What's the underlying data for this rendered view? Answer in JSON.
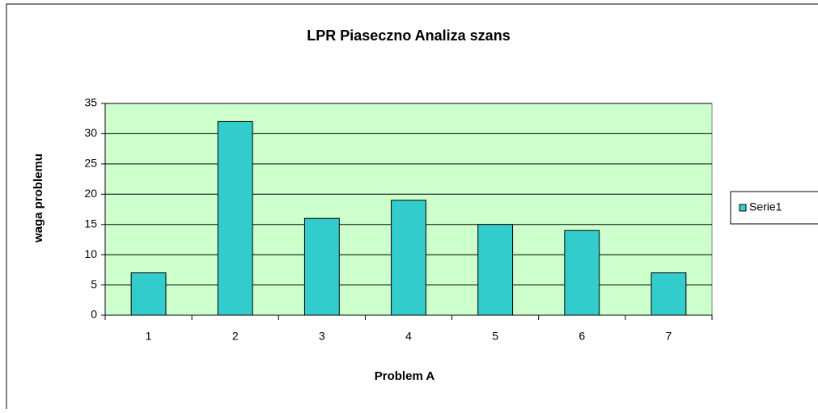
{
  "chart_data": {
    "type": "bar",
    "title": "LPR Piaseczno Analiza szans",
    "x_label": "Problem A",
    "y_label": "waga problemu",
    "categories": [
      "1",
      "2",
      "3",
      "4",
      "5",
      "6",
      "7"
    ],
    "series": [
      {
        "name": "Serie1",
        "color": "#33cccc",
        "values": [
          7,
          32,
          16,
          19,
          15,
          14,
          7
        ]
      }
    ],
    "ylim": [
      0,
      35
    ],
    "yticks": [
      0,
      5,
      10,
      15,
      20,
      25,
      30,
      35
    ],
    "grid": true,
    "plot_background": "#ccffcc",
    "legend": "right"
  }
}
